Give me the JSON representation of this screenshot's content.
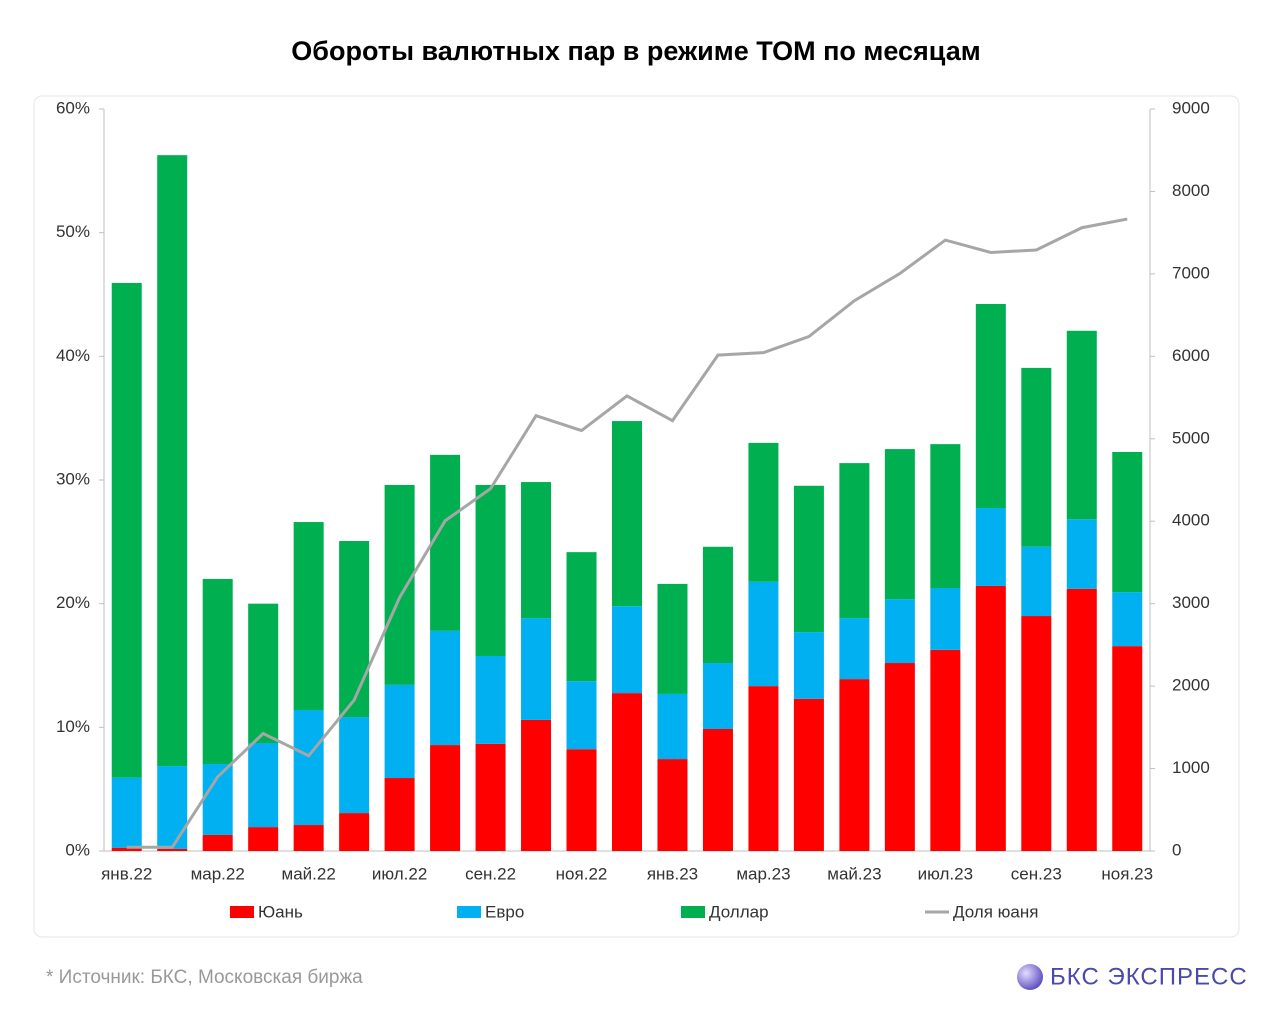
{
  "chart_data": {
    "type": "bar",
    "stacked": true,
    "title": "Обороты валютных пар в режиме ТОМ по месяцам",
    "categories": [
      "янв.22",
      null,
      "мар.22",
      null,
      "май.22",
      null,
      "июл.22",
      null,
      "сен.22",
      null,
      "ноя.22",
      null,
      "янв.23",
      null,
      "мар.23",
      null,
      "май.23",
      null,
      "июл.23",
      null,
      "сен.23",
      null,
      "ноя.23"
    ],
    "series": [
      {
        "name": "Юань",
        "color": "#ff0000",
        "axis": "y2",
        "values": [
          40,
          25,
          195,
          290,
          315,
          460,
          885,
          1285,
          1300,
          1590,
          1235,
          1915,
          1115,
          1480,
          2000,
          1845,
          2085,
          2280,
          2440,
          3215,
          2850,
          3180,
          2485
        ]
      },
      {
        "name": "Евро",
        "color": "#00b0f0",
        "axis": "y2",
        "values": [
          850,
          1005,
          860,
          1020,
          1395,
          1165,
          1130,
          1385,
          1065,
          1235,
          825,
          1055,
          790,
          800,
          1265,
          810,
          740,
          775,
          750,
          945,
          840,
          845,
          655
        ]
      },
      {
        "name": "Доллар",
        "color": "#00b050",
        "axis": "y2",
        "values": [
          6000,
          7410,
          2245,
          1690,
          2280,
          2135,
          2425,
          2135,
          2075,
          1650,
          1565,
          2245,
          1335,
          1410,
          1685,
          1775,
          1880,
          1820,
          1745,
          2475,
          2170,
          2285,
          1700
        ]
      },
      {
        "name": "Доля юаня",
        "color": "#a6a6a6",
        "type": "line",
        "axis": "y",
        "values": [
          0.3,
          0.3,
          6.0,
          9.5,
          7.7,
          12.2,
          20.5,
          26.7,
          29.3,
          35.2,
          34.0,
          36.8,
          34.8,
          40.1,
          40.3,
          41.6,
          44.5,
          46.7,
          49.4,
          48.4,
          48.6,
          50.4,
          51.1
        ]
      }
    ],
    "ylim": [
      0,
      60
    ],
    "yticks": [
      {
        "value": 0,
        "label": "0%"
      },
      {
        "value": 10,
        "label": "10%"
      },
      {
        "value": 20,
        "label": "20%"
      },
      {
        "value": 30,
        "label": "30%"
      },
      {
        "value": 40,
        "label": "40%"
      },
      {
        "value": 50,
        "label": "50%"
      },
      {
        "value": 60,
        "label": "60%"
      }
    ],
    "y2lim": [
      0,
      9000
    ],
    "y2ticks": [
      0,
      1000,
      2000,
      3000,
      4000,
      5000,
      6000,
      7000,
      8000,
      9000
    ],
    "grid": false,
    "legend": "bottom",
    "source": "*  Источник: БКС, Московская биржа",
    "brand": "БКС ЭКСПРЕСС"
  }
}
